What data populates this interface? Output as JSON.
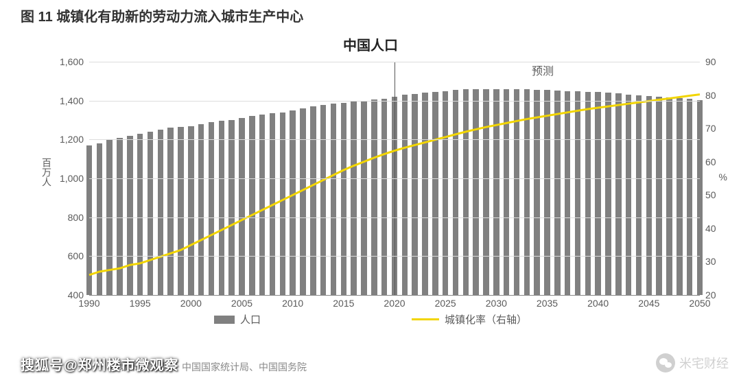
{
  "caption": "图 11  城镇化有助新的劳动力流入城市生产中心",
  "chart": {
    "type": "bar+line",
    "title": "中国人口",
    "forecast_label": "预测",
    "forecast_start_year": 2020,
    "y_left": {
      "label": "百万人",
      "min": 400,
      "max": 1600,
      "ticks": [
        400,
        600,
        800,
        1000,
        1200,
        1400,
        1600
      ],
      "tick_labels": [
        "400",
        "600",
        "800",
        "1,000",
        "1,200",
        "1,400",
        "1,600"
      ],
      "fontsize": 14,
      "color": "#5a5a5a"
    },
    "y_right": {
      "label": "%",
      "min": 20,
      "max": 90,
      "ticks": [
        20,
        30,
        40,
        50,
        60,
        70,
        80,
        90
      ],
      "fontsize": 14,
      "color": "#5a5a5a"
    },
    "x": {
      "min": 1990,
      "max": 2050,
      "ticks": [
        1990,
        1995,
        2000,
        2005,
        2010,
        2015,
        2020,
        2025,
        2030,
        2035,
        2040,
        2045,
        2050
      ],
      "fontsize": 14,
      "color": "#5a5a5a"
    },
    "grid_color": "#dcdcdc",
    "background_color": "#ffffff",
    "vline_color": "#555555",
    "bars": {
      "label": "人口",
      "color": "#808080",
      "width_ratio": 0.58,
      "years": [
        1990,
        1991,
        1992,
        1993,
        1994,
        1995,
        1996,
        1997,
        1998,
        1999,
        2000,
        2001,
        2002,
        2003,
        2004,
        2005,
        2006,
        2007,
        2008,
        2009,
        2010,
        2011,
        2012,
        2013,
        2014,
        2015,
        2016,
        2017,
        2018,
        2019,
        2020,
        2021,
        2022,
        2023,
        2024,
        2025,
        2026,
        2027,
        2028,
        2029,
        2030,
        2031,
        2032,
        2033,
        2034,
        2035,
        2036,
        2037,
        2038,
        2039,
        2040,
        2041,
        2042,
        2043,
        2044,
        2045,
        2046,
        2047,
        2048,
        2049,
        2050
      ],
      "values": [
        1170,
        1180,
        1200,
        1210,
        1220,
        1230,
        1240,
        1250,
        1260,
        1265,
        1270,
        1280,
        1290,
        1295,
        1300,
        1310,
        1320,
        1330,
        1335,
        1340,
        1350,
        1360,
        1370,
        1378,
        1385,
        1390,
        1395,
        1400,
        1405,
        1410,
        1420,
        1430,
        1435,
        1440,
        1445,
        1450,
        1455,
        1458,
        1460,
        1460,
        1460,
        1460,
        1460,
        1458,
        1456,
        1454,
        1452,
        1450,
        1448,
        1446,
        1444,
        1440,
        1436,
        1432,
        1428,
        1424,
        1420,
        1416,
        1412,
        1408,
        1402
      ]
    },
    "line": {
      "label": "城镇化率（右轴）",
      "color": "#f2d500",
      "width": 3,
      "years": [
        1990,
        1991,
        1992,
        1993,
        1994,
        1995,
        1996,
        1997,
        1998,
        1999,
        2000,
        2001,
        2002,
        2003,
        2004,
        2005,
        2006,
        2007,
        2008,
        2009,
        2010,
        2011,
        2012,
        2013,
        2014,
        2015,
        2016,
        2017,
        2018,
        2019,
        2020,
        2021,
        2022,
        2023,
        2024,
        2025,
        2026,
        2027,
        2028,
        2029,
        2030,
        2031,
        2032,
        2033,
        2034,
        2035,
        2036,
        2037,
        2038,
        2039,
        2040,
        2041,
        2042,
        2043,
        2044,
        2045,
        2046,
        2047,
        2048,
        2049,
        2050
      ],
      "values": [
        26,
        27,
        27.5,
        28,
        29,
        29.5,
        30.5,
        31.5,
        32.5,
        33.5,
        35,
        36.5,
        38,
        39.5,
        41,
        42.5,
        44,
        45.5,
        47,
        48.5,
        50,
        51.5,
        53,
        54.5,
        56,
        57.5,
        58.8,
        60,
        61.2,
        62.3,
        63.3,
        64.2,
        65,
        65.8,
        66.6,
        67.4,
        68.2,
        69,
        69.7,
        70.4,
        71,
        71.6,
        72.2,
        72.8,
        73.3,
        73.8,
        74.3,
        74.8,
        75.3,
        75.8,
        76.2,
        76.6,
        77,
        77.4,
        77.8,
        78.2,
        78.6,
        79,
        79.4,
        79.8,
        80.2
      ]
    },
    "legend_fontsize": 15
  },
  "source": "界城市化展望》、中国国家统计局、中国国务院",
  "watermark_left": "搜狐号@郑州楼市微观察",
  "watermark_right": "米宅财经"
}
